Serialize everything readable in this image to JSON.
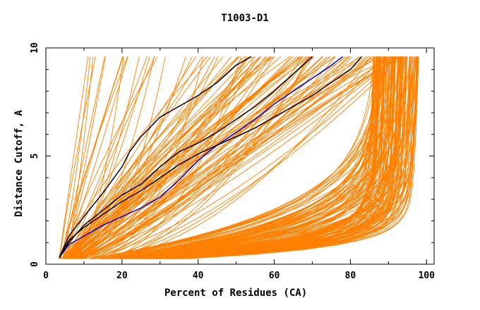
{
  "chart_data": {
    "type": "line",
    "title": "T1003-D1",
    "xlabel": "Percent of Residues (CA)",
    "ylabel": "Distance Cutoff, A",
    "xlim": [
      0,
      102
    ],
    "ylim": [
      0,
      10
    ],
    "x_ticks": [
      "0",
      "20",
      "40",
      "60",
      "80",
      "100"
    ],
    "y_ticks": [
      "0",
      "5",
      "10"
    ],
    "colors": {
      "bundle": "#ff8000",
      "highlight_primary": "#0000cc",
      "highlight_secondary": "#000000"
    },
    "series": [
      {
        "role": "highlight",
        "color": "#0000cc",
        "x": [
          3.5,
          6,
          10,
          15,
          20,
          25,
          30,
          35,
          40,
          45,
          50,
          55,
          60,
          65,
          70,
          75,
          78
        ],
        "y": [
          0.3,
          0.9,
          1.3,
          1.8,
          2.2,
          2.6,
          3.1,
          3.9,
          4.8,
          5.5,
          6.1,
          6.7,
          7.4,
          8.0,
          8.6,
          9.2,
          9.6
        ]
      },
      {
        "role": "highlight",
        "color": "#000000",
        "x": [
          3.5,
          6,
          10,
          15,
          20,
          22,
          25,
          30,
          35,
          40,
          45,
          50,
          54
        ],
        "y": [
          0.3,
          1.3,
          2.2,
          3.3,
          4.5,
          5.2,
          5.9,
          6.8,
          7.3,
          7.8,
          8.4,
          9.2,
          9.6
        ]
      },
      {
        "role": "highlight",
        "color": "#000000",
        "x": [
          3.5,
          6,
          10,
          15,
          20,
          25,
          30,
          35,
          40,
          45,
          50,
          55,
          60,
          65,
          70
        ],
        "y": [
          0.3,
          1.0,
          1.8,
          2.5,
          3.2,
          3.7,
          4.5,
          5.2,
          5.6,
          6.1,
          6.7,
          7.3,
          8.0,
          8.8,
          9.6
        ]
      },
      {
        "role": "highlight",
        "color": "#000000",
        "x": [
          3.5,
          6,
          10,
          15,
          20,
          25,
          30,
          35,
          40,
          45,
          50,
          55,
          60,
          65,
          70,
          75,
          80,
          83
        ],
        "y": [
          0.3,
          1.1,
          1.7,
          2.3,
          2.9,
          3.4,
          4.0,
          4.6,
          5.1,
          5.5,
          5.9,
          6.3,
          6.8,
          7.3,
          7.8,
          8.4,
          9.0,
          9.6
        ]
      }
    ]
  }
}
